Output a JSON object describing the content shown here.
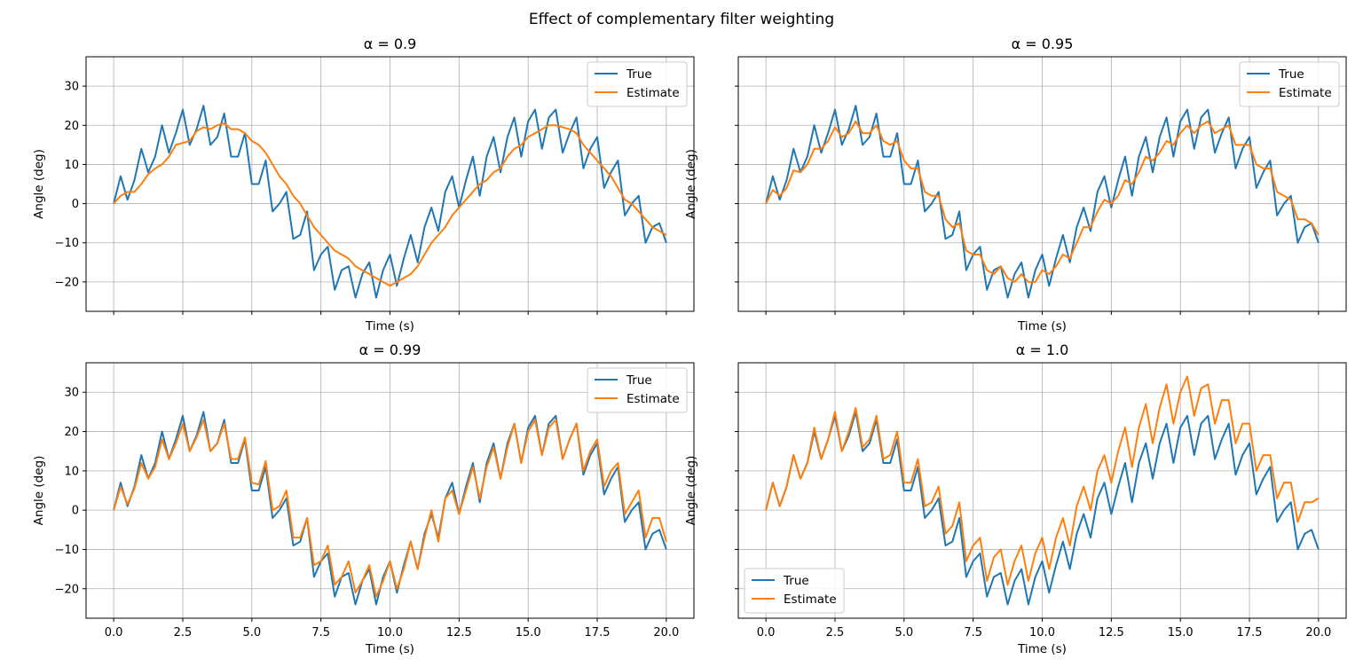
{
  "figure": {
    "suptitle": "Effect of complementary filter weighting"
  },
  "colors": {
    "true_series": "#1f77b4",
    "estimate_series": "#ff7f0e",
    "grid": "#b0b0b0",
    "axes": "#000000"
  },
  "chart_data": [
    {
      "type": "line",
      "title": "α = 0.9",
      "alpha": 0.9,
      "xlabel": "Time (s)",
      "ylabel": "Angle (deg)",
      "xlim": [
        -1,
        21
      ],
      "ylim": [
        -27.5,
        37.5
      ],
      "xticks": [
        "0.0",
        "2.5",
        "5.0",
        "7.5",
        "10.0",
        "12.5",
        "15.0",
        "17.5",
        "20.0"
      ],
      "yticks": [
        "−20",
        "−10",
        "0",
        "10",
        "20",
        "30"
      ],
      "show_xtick_labels": false,
      "show_ytick_labels": true,
      "grid": true,
      "legend": "upper right",
      "x": {
        "start": 0,
        "end": 20,
        "step": 0.25
      },
      "series": [
        {
          "name": "True",
          "color": "#1f77b4",
          "values": [
            0,
            7,
            1,
            6,
            14,
            8,
            12,
            20,
            13,
            18,
            24,
            15,
            19,
            25,
            15,
            17,
            23,
            12,
            12,
            18,
            5,
            5,
            11,
            -2,
            0,
            3,
            -9,
            -8,
            -2,
            -17,
            -13,
            -11,
            -22,
            -17,
            -16,
            -24,
            -18,
            -15,
            -24,
            -17,
            -13,
            -21,
            -14,
            -8,
            -15,
            -6,
            -1,
            -7,
            3,
            7,
            -1,
            6,
            12,
            2,
            12,
            17,
            8,
            17,
            22,
            12,
            21,
            24,
            14,
            22,
            24,
            13,
            18,
            22,
            9,
            14,
            17,
            4,
            8,
            11,
            -3,
            0,
            2,
            -10,
            -6,
            -5,
            -10
          ]
        },
        {
          "name": "Estimate",
          "color": "#ff7f0e",
          "values": [
            0,
            2,
            3,
            3,
            5,
            7.5,
            9,
            10,
            12,
            15,
            15.5,
            16,
            18.5,
            19.5,
            19,
            20,
            20.5,
            19,
            19,
            18,
            16,
            15,
            13,
            10,
            7,
            5,
            2,
            0,
            -3,
            -6,
            -8,
            -10,
            -12,
            -13,
            -14,
            -16,
            -17,
            -18,
            -19,
            -20,
            -21,
            -20,
            -19,
            -18,
            -16,
            -13,
            -10,
            -8,
            -6,
            -3,
            -1,
            1,
            3,
            5,
            6,
            8,
            9,
            12,
            14,
            15,
            17,
            18,
            19,
            20,
            20,
            19.5,
            19,
            18,
            15,
            13,
            11,
            9,
            7,
            4,
            1,
            0,
            -2,
            -4,
            -6,
            -7,
            -8
          ]
        }
      ]
    },
    {
      "type": "line",
      "title": "α = 0.95",
      "alpha": 0.95,
      "xlabel": "Time (s)",
      "ylabel": "Angle (deg)",
      "xlim": [
        -1,
        21
      ],
      "ylim": [
        -27.5,
        37.5
      ],
      "xticks": [
        "0.0",
        "2.5",
        "5.0",
        "7.5",
        "10.0",
        "12.5",
        "15.0",
        "17.5",
        "20.0"
      ],
      "yticks": [
        "−20",
        "−10",
        "0",
        "10",
        "20",
        "30"
      ],
      "show_xtick_labels": false,
      "show_ytick_labels": false,
      "grid": true,
      "legend": "upper right",
      "x": {
        "start": 0,
        "end": 20,
        "step": 0.25
      },
      "series": [
        {
          "name": "True",
          "color": "#1f77b4",
          "values": [
            0,
            7,
            1,
            6,
            14,
            8,
            12,
            20,
            13,
            18,
            24,
            15,
            19,
            25,
            15,
            17,
            23,
            12,
            12,
            18,
            5,
            5,
            11,
            -2,
            0,
            3,
            -9,
            -8,
            -2,
            -17,
            -13,
            -11,
            -22,
            -17,
            -16,
            -24,
            -18,
            -15,
            -24,
            -17,
            -13,
            -21,
            -14,
            -8,
            -15,
            -6,
            -1,
            -7,
            3,
            7,
            -1,
            6,
            12,
            2,
            12,
            17,
            8,
            17,
            22,
            12,
            21,
            24,
            14,
            22,
            24,
            13,
            18,
            22,
            9,
            14,
            17,
            4,
            8,
            11,
            -3,
            0,
            2,
            -10,
            -6,
            -5,
            -10
          ]
        },
        {
          "name": "Estimate",
          "color": "#ff7f0e",
          "values": [
            0,
            3.5,
            2,
            4,
            8.5,
            8,
            10,
            14,
            14,
            16,
            19.5,
            17,
            18,
            21,
            18,
            18,
            20,
            16,
            15,
            16,
            11,
            9,
            9,
            3,
            2,
            2,
            -4,
            -6,
            -5,
            -12,
            -13,
            -13,
            -17,
            -18,
            -16,
            -19,
            -20,
            -18,
            -20,
            -20,
            -17,
            -18,
            -16,
            -13,
            -14,
            -10,
            -6,
            -6,
            -2,
            1,
            0,
            2,
            6,
            5,
            8,
            12,
            11,
            13,
            16,
            15,
            18,
            20,
            18,
            20,
            21,
            18,
            19,
            20,
            15,
            15,
            15,
            10,
            9,
            9,
            3,
            2,
            1,
            -4,
            -4,
            -5,
            -8
          ]
        }
      ]
    },
    {
      "type": "line",
      "title": "α = 0.99",
      "alpha": 0.99,
      "xlabel": "Time (s)",
      "ylabel": "Angle (deg)",
      "xlim": [
        -1,
        21
      ],
      "ylim": [
        -27.5,
        37.5
      ],
      "xticks": [
        "0.0",
        "2.5",
        "5.0",
        "7.5",
        "10.0",
        "12.5",
        "15.0",
        "17.5",
        "20.0"
      ],
      "yticks": [
        "−20",
        "−10",
        "0",
        "10",
        "20",
        "30"
      ],
      "show_xtick_labels": true,
      "show_ytick_labels": true,
      "grid": true,
      "legend": "upper right",
      "x": {
        "start": 0,
        "end": 20,
        "step": 0.25
      },
      "series": [
        {
          "name": "True",
          "color": "#1f77b4",
          "values": [
            0,
            7,
            1,
            6,
            14,
            8,
            12,
            20,
            13,
            18,
            24,
            15,
            19,
            25,
            15,
            17,
            23,
            12,
            12,
            18,
            5,
            5,
            11,
            -2,
            0,
            3,
            -9,
            -8,
            -2,
            -17,
            -13,
            -11,
            -22,
            -17,
            -16,
            -24,
            -18,
            -15,
            -24,
            -17,
            -13,
            -21,
            -14,
            -8,
            -15,
            -6,
            -1,
            -7,
            3,
            7,
            -1,
            6,
            12,
            2,
            12,
            17,
            8,
            17,
            22,
            12,
            21,
            24,
            14,
            22,
            24,
            13,
            18,
            22,
            9,
            14,
            17,
            4,
            8,
            11,
            -3,
            0,
            2,
            -10,
            -6,
            -5,
            -10
          ]
        },
        {
          "name": "Estimate",
          "color": "#ff7f0e",
          "values": [
            0,
            6,
            1.5,
            5.5,
            12,
            8,
            11,
            18,
            13,
            17,
            22,
            15,
            18.5,
            23,
            15,
            17,
            22,
            13,
            13,
            18.5,
            7,
            6.5,
            12.5,
            0,
            1,
            5,
            -7,
            -7,
            -2,
            -14,
            -13,
            -9,
            -19,
            -17,
            -13,
            -21,
            -18,
            -14,
            -22,
            -18,
            -13,
            -20,
            -15,
            -8,
            -15,
            -7,
            0,
            -8,
            3,
            5,
            -1,
            5,
            11,
            3,
            11,
            16,
            8,
            16,
            22,
            12,
            20,
            23,
            14,
            21,
            23,
            13,
            18,
            22,
            10,
            15,
            18,
            6,
            10,
            12,
            -1,
            2,
            5,
            -7,
            -2,
            -2,
            -8
          ]
        }
      ]
    },
    {
      "type": "line",
      "title": "α = 1.0",
      "alpha": 1.0,
      "xlabel": "Time (s)",
      "ylabel": "Angle (deg)",
      "xlim": [
        -1,
        21
      ],
      "ylim": [
        -27.5,
        37.5
      ],
      "xticks": [
        "0.0",
        "2.5",
        "5.0",
        "7.5",
        "10.0",
        "12.5",
        "15.0",
        "17.5",
        "20.0"
      ],
      "yticks": [
        "−20",
        "−10",
        "0",
        "10",
        "20",
        "30"
      ],
      "show_xtick_labels": true,
      "show_ytick_labels": false,
      "grid": true,
      "legend": "lower left",
      "x": {
        "start": 0,
        "end": 20,
        "step": 0.25
      },
      "series": [
        {
          "name": "True",
          "color": "#1f77b4",
          "values": [
            0,
            7,
            1,
            6,
            14,
            8,
            12,
            20,
            13,
            18,
            24,
            15,
            19,
            25,
            15,
            17,
            23,
            12,
            12,
            18,
            5,
            5,
            11,
            -2,
            0,
            3,
            -9,
            -8,
            -2,
            -17,
            -13,
            -11,
            -22,
            -17,
            -16,
            -24,
            -18,
            -15,
            -24,
            -17,
            -13,
            -21,
            -14,
            -8,
            -15,
            -6,
            -1,
            -7,
            3,
            7,
            -1,
            6,
            12,
            2,
            12,
            17,
            8,
            17,
            22,
            12,
            21,
            24,
            14,
            22,
            24,
            13,
            18,
            22,
            9,
            14,
            17,
            4,
            8,
            11,
            -3,
            0,
            2,
            -10,
            -6,
            -5,
            -10
          ]
        },
        {
          "name": "Estimate",
          "color": "#ff7f0e",
          "values": [
            0,
            7,
            1,
            6,
            14,
            8,
            12,
            21,
            13,
            18,
            25,
            15,
            20,
            26,
            16,
            18,
            24,
            13,
            14,
            20,
            7,
            7,
            13,
            1,
            2,
            6,
            -6,
            -4,
            2,
            -13,
            -9,
            -7,
            -18,
            -12,
            -10,
            -19,
            -13,
            -9,
            -18,
            -11,
            -7,
            -15,
            -7,
            -2,
            -9,
            1,
            6,
            0,
            10,
            14,
            7,
            15,
            21,
            11,
            21,
            27,
            17,
            26,
            32,
            22,
            30,
            34,
            24,
            31,
            32,
            22,
            28,
            28,
            17,
            22,
            22,
            10,
            14,
            14,
            3,
            7,
            7,
            -3,
            2,
            2,
            3
          ]
        }
      ]
    }
  ]
}
